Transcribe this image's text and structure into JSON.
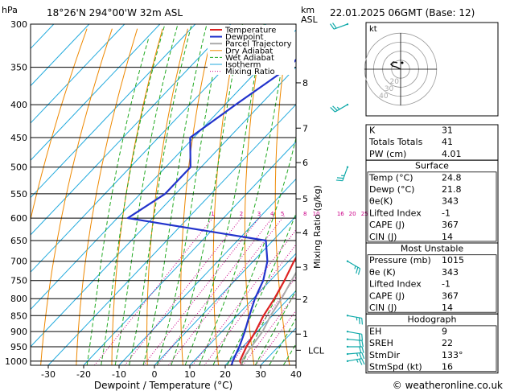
{
  "header": {
    "hpa_unit": "hPa",
    "location": "18°26'N  294°00'W  32m  ASL",
    "km_unit": "km",
    "asl_unit": "ASL",
    "datetime": "22.01.2025  06GMT  (Base: 12)"
  },
  "legend": [
    "Temperature",
    "Dewpoint",
    "Parcel Trajectory",
    "Dry Adiabat",
    "Wet Adiabat",
    "Isotherm",
    "Mixing Ratio"
  ],
  "colors": {
    "temperature": "#dd2222",
    "dewpoint": "#2233cc",
    "parcel": "#aaaaaa",
    "dry_adiabat": "#ee8800",
    "wet_adiabat": "#22aa22",
    "isotherm": "#22aadd",
    "mixing_ratio": "#cc0088",
    "wind": "#11aaaa"
  },
  "footer": {
    "copyright": "© weatheronline.co.uk"
  },
  "hodograph": {
    "unit": "kt",
    "ring_labels": [
      "40",
      "30",
      "20"
    ]
  },
  "indices": {
    "rows": [
      {
        "label": "K",
        "value": "31"
      },
      {
        "label": "Totals Totals",
        "value": "41"
      },
      {
        "label": "PW (cm)",
        "value": "4.01"
      }
    ]
  },
  "surface": {
    "title": "Surface",
    "rows": [
      {
        "label": "Temp (°C)",
        "value": "24.8"
      },
      {
        "label": "Dewp (°C)",
        "value": "21.8"
      },
      {
        "label": "θe(K)",
        "value": "343"
      },
      {
        "label": "Lifted Index",
        "value": "-1"
      },
      {
        "label": "CAPE (J)",
        "value": "367"
      },
      {
        "label": "CIN (J)",
        "value": "14"
      }
    ]
  },
  "most_unstable": {
    "title": "Most Unstable",
    "rows": [
      {
        "label": "Pressure (mb)",
        "value": "1015"
      },
      {
        "label": "θe (K)",
        "value": "343"
      },
      {
        "label": "Lifted Index",
        "value": "-1"
      },
      {
        "label": "CAPE (J)",
        "value": "367"
      },
      {
        "label": "CIN (J)",
        "value": "14"
      }
    ]
  },
  "hodograph_table": {
    "title": "Hodograph",
    "rows": [
      {
        "label": "EH",
        "value": "9"
      },
      {
        "label": "SREH",
        "value": "22"
      },
      {
        "label": "StmDir",
        "value": "133°"
      },
      {
        "label": "StmSpd (kt)",
        "value": "16"
      }
    ]
  },
  "chart_data": {
    "type": "line",
    "xlabel": "Dewpoint / Temperature (°C)",
    "ylabel": "hPa",
    "right_axis_label": "Mixing Ratio (g/kg)",
    "x_ticks": [
      "-30",
      "-20",
      "-10",
      "0",
      "10",
      "20",
      "30",
      "40"
    ],
    "x_range": [
      -35,
      40
    ],
    "pressure_levels": [
      "300",
      "350",
      "400",
      "450",
      "500",
      "550",
      "600",
      "650",
      "700",
      "750",
      "800",
      "850",
      "900",
      "950",
      "1000"
    ],
    "pressure_range": [
      300,
      1015
    ],
    "km_ticks": [
      {
        "km": "1",
        "p": 908
      },
      {
        "km": "2",
        "p": 802
      },
      {
        "km": "3",
        "p": 715
      },
      {
        "km": "4",
        "p": 632
      },
      {
        "km": "5",
        "p": 560
      },
      {
        "km": "6",
        "p": 492
      },
      {
        "km": "7",
        "p": 435
      },
      {
        "km": "8",
        "p": 370
      }
    ],
    "lcl": {
      "label": "LCL",
      "p": 962
    },
    "mixing_ratio_labels": [
      "1",
      "2",
      "3",
      "4",
      "5",
      "8",
      "10",
      "16",
      "20",
      "25"
    ],
    "mixing_ratio_values": [
      1,
      2,
      3,
      4,
      5,
      8,
      10,
      16,
      20,
      25
    ],
    "series": [
      {
        "name": "Temperature",
        "points": [
          [
            24.8,
            1015
          ],
          [
            23,
            1000
          ],
          [
            21,
            950
          ],
          [
            19.5,
            900
          ],
          [
            17.5,
            850
          ],
          [
            16,
            800
          ],
          [
            14,
            750
          ],
          [
            11.5,
            700
          ],
          [
            9.5,
            650
          ],
          [
            7,
            600
          ],
          [
            4,
            550
          ],
          [
            -0.5,
            500
          ],
          [
            -5.5,
            450
          ],
          [
            -11.5,
            400
          ],
          [
            -19,
            350
          ],
          [
            -28,
            300
          ]
        ]
      },
      {
        "name": "Dewpoint",
        "points": [
          [
            21.8,
            1015
          ],
          [
            21,
            1000
          ],
          [
            19,
            950
          ],
          [
            16.5,
            900
          ],
          [
            13.5,
            850
          ],
          [
            10.5,
            800
          ],
          [
            8,
            750
          ],
          [
            4,
            700
          ],
          [
            -2,
            650
          ],
          [
            -47,
            600
          ],
          [
            -43,
            550
          ],
          [
            -43,
            500
          ],
          [
            -51,
            450
          ],
          [
            -47,
            400
          ],
          [
            -42,
            350
          ],
          [
            -42,
            300
          ]
        ]
      },
      {
        "name": "Parcel Trajectory",
        "points": [
          [
            24.8,
            1015
          ],
          [
            23.5,
            1000
          ],
          [
            22.6,
            962
          ],
          [
            21.5,
            900
          ],
          [
            19.5,
            850
          ],
          [
            18,
            800
          ],
          [
            16,
            750
          ],
          [
            14,
            700
          ],
          [
            11.5,
            650
          ],
          [
            9,
            600
          ],
          [
            6,
            550
          ],
          [
            2,
            500
          ],
          [
            -2.5,
            450
          ],
          [
            -8,
            400
          ],
          [
            -15,
            350
          ],
          [
            -23,
            300
          ]
        ]
      }
    ]
  },
  "wind_barbs": [
    {
      "p": 1000,
      "dir": 80,
      "spd": 15
    },
    {
      "p": 975,
      "dir": 85,
      "spd": 15
    },
    {
      "p": 950,
      "dir": 90,
      "spd": 20
    },
    {
      "p": 925,
      "dir": 95,
      "spd": 20
    },
    {
      "p": 900,
      "dir": 100,
      "spd": 20
    },
    {
      "p": 850,
      "dir": 100,
      "spd": 15
    },
    {
      "p": 700,
      "dir": 120,
      "spd": 15
    },
    {
      "p": 500,
      "dir": 200,
      "spd": 15
    },
    {
      "p": 400,
      "dir": 240,
      "spd": 15
    },
    {
      "p": 300,
      "dir": 250,
      "spd": 20
    }
  ]
}
